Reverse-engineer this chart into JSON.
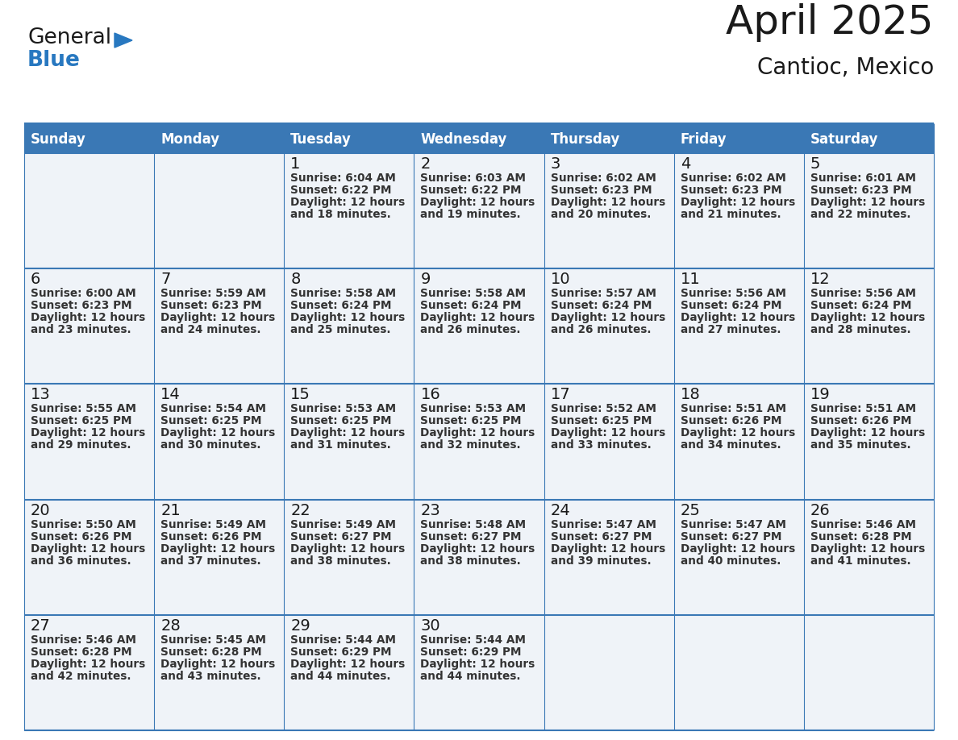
{
  "title": "April 2025",
  "subtitle": "Cantioc, Mexico",
  "days_of_week": [
    "Sunday",
    "Monday",
    "Tuesday",
    "Wednesday",
    "Thursday",
    "Friday",
    "Saturday"
  ],
  "header_bg": "#3a78b5",
  "header_text": "#ffffff",
  "cell_bg": "#eff3f8",
  "day_num_color": "#1a1a1a",
  "text_color": "#333333",
  "line_color": "#3a78b5",
  "logo_general_color": "#1a1a1a",
  "logo_blue_color": "#2878c0",
  "calendar_data": [
    [
      {
        "day": null,
        "sunrise": null,
        "sunset": null,
        "daylight": null
      },
      {
        "day": null,
        "sunrise": null,
        "sunset": null,
        "daylight": null
      },
      {
        "day": 1,
        "sunrise": "6:04 AM",
        "sunset": "6:22 PM",
        "daylight": "12 hours and 18 minutes."
      },
      {
        "day": 2,
        "sunrise": "6:03 AM",
        "sunset": "6:22 PM",
        "daylight": "12 hours and 19 minutes."
      },
      {
        "day": 3,
        "sunrise": "6:02 AM",
        "sunset": "6:23 PM",
        "daylight": "12 hours and 20 minutes."
      },
      {
        "day": 4,
        "sunrise": "6:02 AM",
        "sunset": "6:23 PM",
        "daylight": "12 hours and 21 minutes."
      },
      {
        "day": 5,
        "sunrise": "6:01 AM",
        "sunset": "6:23 PM",
        "daylight": "12 hours and 22 minutes."
      }
    ],
    [
      {
        "day": 6,
        "sunrise": "6:00 AM",
        "sunset": "6:23 PM",
        "daylight": "12 hours and 23 minutes."
      },
      {
        "day": 7,
        "sunrise": "5:59 AM",
        "sunset": "6:23 PM",
        "daylight": "12 hours and 24 minutes."
      },
      {
        "day": 8,
        "sunrise": "5:58 AM",
        "sunset": "6:24 PM",
        "daylight": "12 hours and 25 minutes."
      },
      {
        "day": 9,
        "sunrise": "5:58 AM",
        "sunset": "6:24 PM",
        "daylight": "12 hours and 26 minutes."
      },
      {
        "day": 10,
        "sunrise": "5:57 AM",
        "sunset": "6:24 PM",
        "daylight": "12 hours and 26 minutes."
      },
      {
        "day": 11,
        "sunrise": "5:56 AM",
        "sunset": "6:24 PM",
        "daylight": "12 hours and 27 minutes."
      },
      {
        "day": 12,
        "sunrise": "5:56 AM",
        "sunset": "6:24 PM",
        "daylight": "12 hours and 28 minutes."
      }
    ],
    [
      {
        "day": 13,
        "sunrise": "5:55 AM",
        "sunset": "6:25 PM",
        "daylight": "12 hours and 29 minutes."
      },
      {
        "day": 14,
        "sunrise": "5:54 AM",
        "sunset": "6:25 PM",
        "daylight": "12 hours and 30 minutes."
      },
      {
        "day": 15,
        "sunrise": "5:53 AM",
        "sunset": "6:25 PM",
        "daylight": "12 hours and 31 minutes."
      },
      {
        "day": 16,
        "sunrise": "5:53 AM",
        "sunset": "6:25 PM",
        "daylight": "12 hours and 32 minutes."
      },
      {
        "day": 17,
        "sunrise": "5:52 AM",
        "sunset": "6:25 PM",
        "daylight": "12 hours and 33 minutes."
      },
      {
        "day": 18,
        "sunrise": "5:51 AM",
        "sunset": "6:26 PM",
        "daylight": "12 hours and 34 minutes."
      },
      {
        "day": 19,
        "sunrise": "5:51 AM",
        "sunset": "6:26 PM",
        "daylight": "12 hours and 35 minutes."
      }
    ],
    [
      {
        "day": 20,
        "sunrise": "5:50 AM",
        "sunset": "6:26 PM",
        "daylight": "12 hours and 36 minutes."
      },
      {
        "day": 21,
        "sunrise": "5:49 AM",
        "sunset": "6:26 PM",
        "daylight": "12 hours and 37 minutes."
      },
      {
        "day": 22,
        "sunrise": "5:49 AM",
        "sunset": "6:27 PM",
        "daylight": "12 hours and 38 minutes."
      },
      {
        "day": 23,
        "sunrise": "5:48 AM",
        "sunset": "6:27 PM",
        "daylight": "12 hours and 38 minutes."
      },
      {
        "day": 24,
        "sunrise": "5:47 AM",
        "sunset": "6:27 PM",
        "daylight": "12 hours and 39 minutes."
      },
      {
        "day": 25,
        "sunrise": "5:47 AM",
        "sunset": "6:27 PM",
        "daylight": "12 hours and 40 minutes."
      },
      {
        "day": 26,
        "sunrise": "5:46 AM",
        "sunset": "6:28 PM",
        "daylight": "12 hours and 41 minutes."
      }
    ],
    [
      {
        "day": 27,
        "sunrise": "5:46 AM",
        "sunset": "6:28 PM",
        "daylight": "12 hours and 42 minutes."
      },
      {
        "day": 28,
        "sunrise": "5:45 AM",
        "sunset": "6:28 PM",
        "daylight": "12 hours and 43 minutes."
      },
      {
        "day": 29,
        "sunrise": "5:44 AM",
        "sunset": "6:29 PM",
        "daylight": "12 hours and 44 minutes."
      },
      {
        "day": 30,
        "sunrise": "5:44 AM",
        "sunset": "6:29 PM",
        "daylight": "12 hours and 44 minutes."
      },
      {
        "day": null,
        "sunrise": null,
        "sunset": null,
        "daylight": null
      },
      {
        "day": null,
        "sunrise": null,
        "sunset": null,
        "daylight": null
      },
      {
        "day": null,
        "sunrise": null,
        "sunset": null,
        "daylight": null
      }
    ]
  ]
}
